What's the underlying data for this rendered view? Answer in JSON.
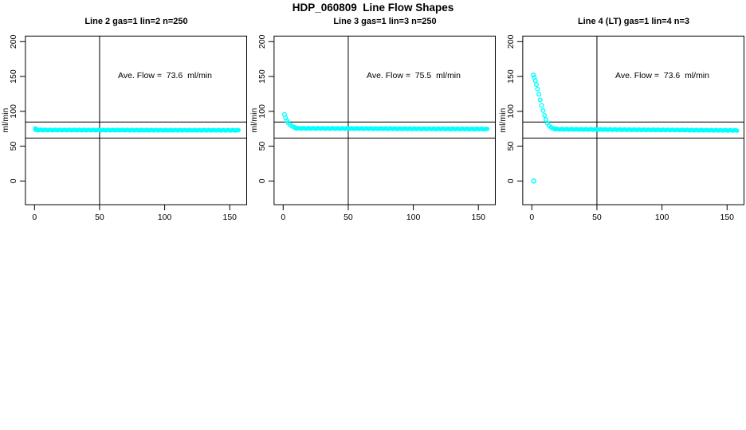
{
  "page": {
    "title": "HDP_060809  Line Flow Shapes",
    "background_color": "#FFFFFF"
  },
  "chart_data": {
    "type": "scatter",
    "title": "HDP_060809  Line Flow Shapes",
    "marker": "open-circle",
    "point_color": "#00FFFF",
    "axis_color": "#000000",
    "grid": false,
    "legend": false,
    "layout": "three panels in one row",
    "panels": [
      {
        "title": "Line 2 gas=1 lin=2 n=250",
        "annotation": "Ave. Flow =  73.6  ml/min",
        "ave_flow_ml_min": 73.6,
        "n_label": 250,
        "ylabel": "ml/min",
        "x_ticks": [
          0,
          50,
          100,
          150
        ],
        "y_ticks": [
          0,
          50,
          100,
          150,
          200
        ],
        "xlim": [
          -7,
          163
        ],
        "ylim": [
          -34,
          208
        ],
        "vline_x": 50,
        "hlines_y": [
          84.6,
          61.7
        ],
        "decay_points": [
          [
            0.7,
            75.2
          ],
          [
            1.3,
            74.2
          ],
          [
            2,
            73.4
          ]
        ],
        "band": {
          "x0": 0.6,
          "x1": 157,
          "y0": 73.2,
          "y1": 72.8
        },
        "outliers": []
      },
      {
        "title": "Line 3 gas=1 lin=3 n=250",
        "annotation": "Ave. Flow =  75.5  ml/min",
        "ave_flow_ml_min": 75.5,
        "n_label": 250,
        "ylabel": "ml/min",
        "x_ticks": [
          0,
          50,
          100,
          150
        ],
        "y_ticks": [
          0,
          50,
          100,
          150,
          200
        ],
        "xlim": [
          -7,
          163
        ],
        "ylim": [
          -34,
          208
        ],
        "vline_x": 50,
        "hlines_y": [
          84.6,
          61.7
        ],
        "decay_points": [
          [
            1,
            95.5
          ],
          [
            1.8,
            90.5
          ],
          [
            2.9,
            86.5
          ],
          [
            3.9,
            83.5
          ],
          [
            5.2,
            80.8
          ],
          [
            6.8,
            78.8
          ],
          [
            8.4,
            77.2
          ],
          [
            9.6,
            76.3
          ]
        ],
        "band": {
          "x0": 10,
          "x1": 157,
          "y0": 75.6,
          "y1": 74.6
        },
        "outliers": []
      },
      {
        "title": "Line 4 (LT) gas=1 lin=4 n=3",
        "annotation": "Ave. Flow =  73.6  ml/min",
        "ave_flow_ml_min": 73.6,
        "n_label": 3,
        "ylabel": "ml/min",
        "x_ticks": [
          0,
          50,
          100,
          150
        ],
        "y_ticks": [
          0,
          50,
          100,
          150,
          200
        ],
        "xlim": [
          -7,
          163
        ],
        "ylim": [
          -34,
          208
        ],
        "vline_x": 50,
        "hlines_y": [
          84.6,
          61.7
        ],
        "decay_points": [
          [
            1.2,
            152
          ],
          [
            1.9,
            148.5
          ],
          [
            2.7,
            144
          ],
          [
            3.5,
            138.5
          ],
          [
            4.4,
            132
          ],
          [
            5.4,
            124.5
          ],
          [
            6.4,
            116.5
          ],
          [
            7.5,
            108.5
          ],
          [
            8.6,
            101
          ],
          [
            9.7,
            94
          ],
          [
            10.8,
            88
          ],
          [
            12,
            83
          ],
          [
            13.3,
            79.5
          ],
          [
            14.7,
            77
          ],
          [
            16.2,
            75.5
          ],
          [
            17.8,
            74.8
          ]
        ],
        "band": {
          "x0": 18,
          "x1": 158,
          "y0": 74.4,
          "y1": 72.6
        },
        "outliers": [
          [
            1.5,
            0
          ]
        ]
      }
    ]
  }
}
